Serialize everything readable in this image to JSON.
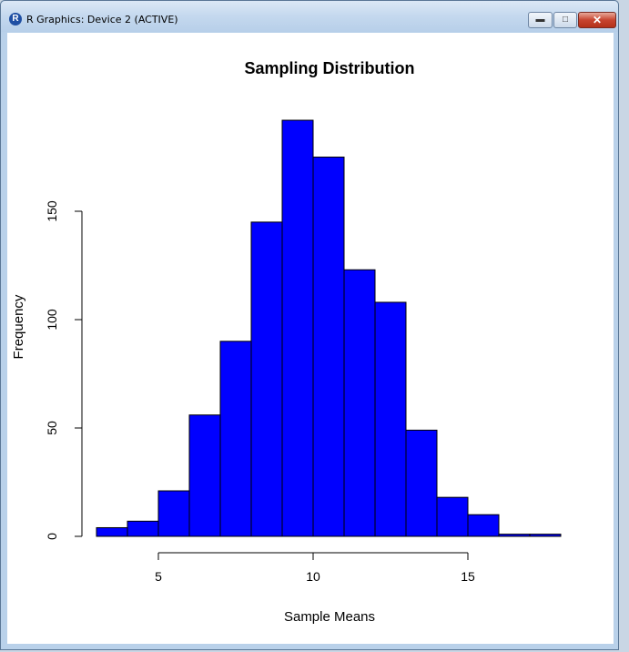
{
  "window": {
    "title": "R Graphics: Device 2 (ACTIVE)",
    "icon": "r-logo-icon",
    "controls": [
      "minimize-icon",
      "maximize-icon",
      "close-icon"
    ]
  },
  "chart_data": {
    "type": "bar",
    "title": "Sampling Distribution",
    "xlabel": "Sample Means",
    "ylabel": "Frequency",
    "bar_color": "#0000ff",
    "bins": [
      {
        "x0": 3,
        "x1": 4,
        "count": 4
      },
      {
        "x0": 4,
        "x1": 5,
        "count": 7
      },
      {
        "x0": 5,
        "x1": 6,
        "count": 21
      },
      {
        "x0": 6,
        "x1": 7,
        "count": 56
      },
      {
        "x0": 7,
        "x1": 8,
        "count": 90
      },
      {
        "x0": 8,
        "x1": 9,
        "count": 145
      },
      {
        "x0": 9,
        "x1": 10,
        "count": 192
      },
      {
        "x0": 10,
        "x1": 11,
        "count": 175
      },
      {
        "x0": 11,
        "x1": 12,
        "count": 123
      },
      {
        "x0": 12,
        "x1": 13,
        "count": 108
      },
      {
        "x0": 13,
        "x1": 14,
        "count": 49
      },
      {
        "x0": 14,
        "x1": 15,
        "count": 18
      },
      {
        "x0": 15,
        "x1": 16,
        "count": 10
      },
      {
        "x0": 16,
        "x1": 17,
        "count": 1
      },
      {
        "x0": 17,
        "x1": 18,
        "count": 1
      }
    ],
    "xticks": [
      "5",
      "10",
      "15"
    ],
    "yticks": [
      "0",
      "50",
      "100",
      "150"
    ],
    "xlim": [
      3,
      18
    ],
    "ylim": [
      0,
      192
    ]
  }
}
